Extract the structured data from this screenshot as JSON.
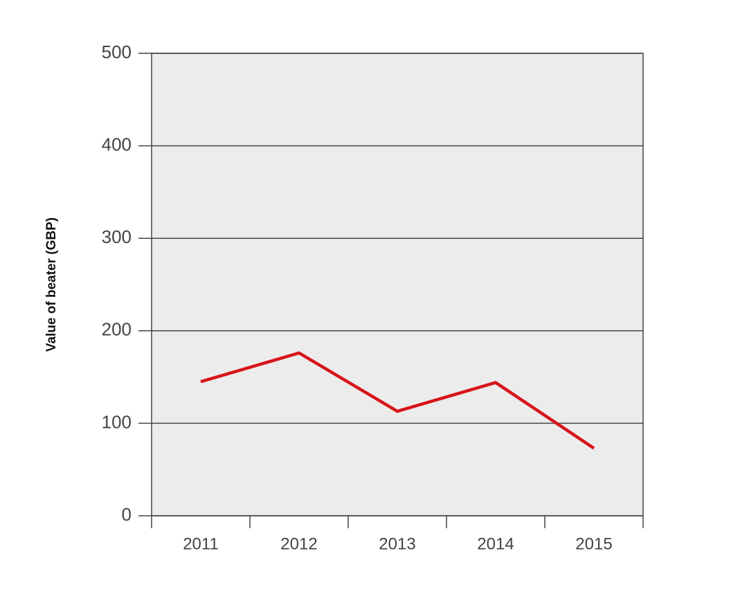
{
  "chart_data": {
    "type": "line",
    "y_label": "Value of beater (GBP)",
    "categories": [
      "2011",
      "2012",
      "2013",
      "2014",
      "2015"
    ],
    "values": [
      145,
      176,
      113,
      144,
      73
    ],
    "color": "#d7141a",
    "ylim": [
      0,
      500
    ],
    "yticks": [
      0,
      100,
      200,
      300,
      400,
      500
    ],
    "grid": true
  }
}
